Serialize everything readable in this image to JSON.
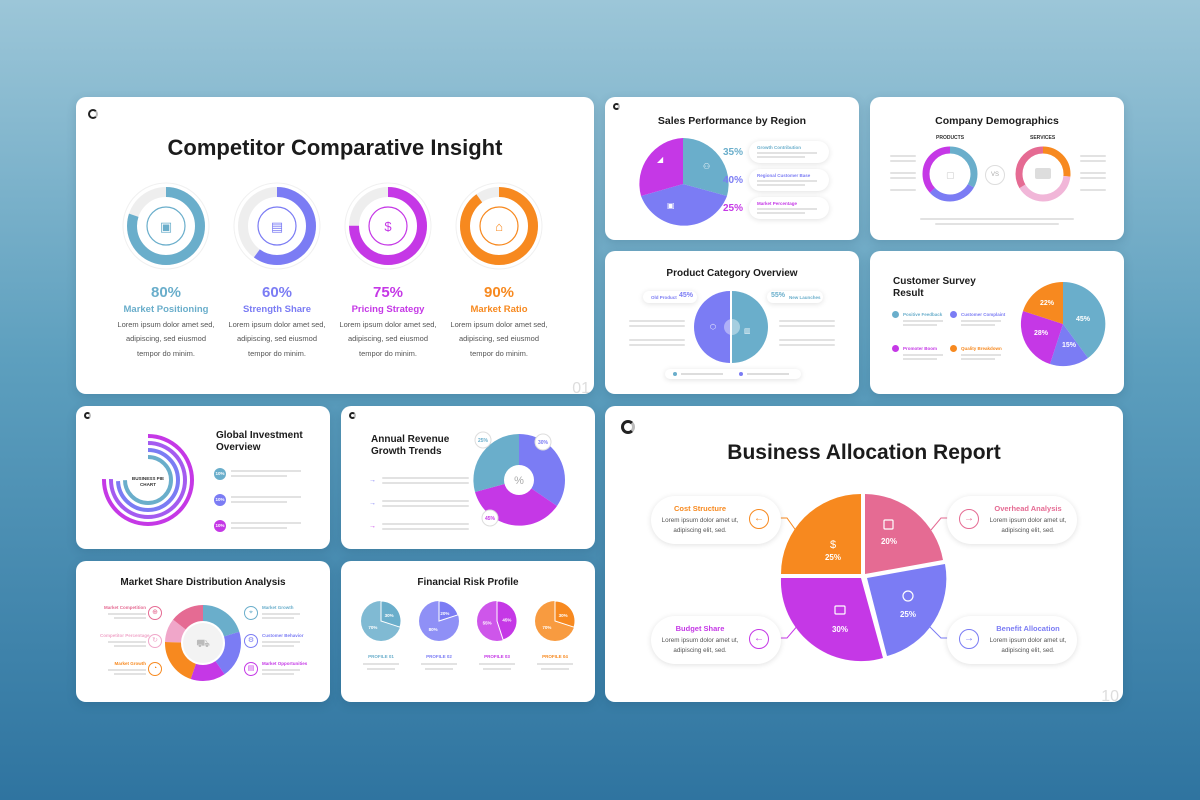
{
  "colors": {
    "teal": "#6aaecb",
    "indigo": "#7b7cf4",
    "purple": "#c538e6",
    "orange": "#f7891f",
    "pink": "#e56b93"
  },
  "competitor": {
    "title": "Competitor Comparative Insight",
    "page": "01",
    "items": [
      {
        "value": "80%",
        "label": "Market Positioning",
        "text1": "Lorem ipsum dolor amet sed,",
        "text2": "adipiscing, sed eiusmod",
        "text3": "tempor do minim.",
        "pct": 0.8,
        "color": "#6aaecb",
        "icon": "briefcase-icon"
      },
      {
        "value": "60%",
        "label": "Strength Share",
        "text1": "Lorem ipsum dolor amet sed,",
        "text2": "adipiscing, sed eiusmod",
        "text3": "tempor do minim.",
        "pct": 0.6,
        "color": "#7b7cf4",
        "icon": "chart-icon"
      },
      {
        "value": "75%",
        "label": "Pricing Strategy",
        "text1": "Lorem ipsum dolor amet sed,",
        "text2": "adipiscing, sed eiusmod",
        "text3": "tempor do minim.",
        "pct": 0.75,
        "color": "#c538e6",
        "icon": "dollar-icon"
      },
      {
        "value": "90%",
        "label": "Market Ratio",
        "text1": "Lorem ipsum dolor amet sed,",
        "text2": "adipiscing, sed eiusmod",
        "text3": "tempor do minim.",
        "pct": 0.9,
        "color": "#f7891f",
        "icon": "store-icon"
      }
    ]
  },
  "sales": {
    "title": "Sales Performance by Region",
    "rows": [
      {
        "value": "35%",
        "label": "Growth Contribution",
        "color": "#6aaecb"
      },
      {
        "value": "40%",
        "label": "Regional Customer Base",
        "color": "#7b7cf4"
      },
      {
        "value": "25%",
        "label": "Market Percentage",
        "color": "#c538e6"
      }
    ]
  },
  "demographics": {
    "title": "Company Demographics",
    "products": "PRODUCTS",
    "services": "SERVICES",
    "vs": "VS"
  },
  "product_category": {
    "title": "Product Category Overview",
    "left_label": "Old Product",
    "left_value": "45%",
    "right_value": "55%",
    "right_label": "New Launches"
  },
  "survey": {
    "title1": "Customer Survey",
    "title2": "Result",
    "items": [
      {
        "label": "Positive Feedback",
        "color": "#6aaecb"
      },
      {
        "label": "Customer Complaint",
        "color": "#7b7cf4"
      },
      {
        "label": "Promoter Boom",
        "color": "#c538e6"
      },
      {
        "label": "Quality Breakdown",
        "color": "#f7891f"
      }
    ],
    "slices": [
      "45%",
      "15%",
      "28%",
      "22%"
    ]
  },
  "investment": {
    "title1": "Global Investment",
    "title2": "Overview",
    "center1": "BUSINESS PIE",
    "center2": "CHART",
    "rows": [
      {
        "value": "10%",
        "color": "#6aaecb"
      },
      {
        "value": "10%",
        "color": "#7b7cf4"
      },
      {
        "value": "10%",
        "color": "#c538e6"
      }
    ]
  },
  "revenue": {
    "title1": "Annual Revenue",
    "title2": "Growth Trends",
    "badges": [
      "25%",
      "30%",
      "45%"
    ],
    "center": "%"
  },
  "business": {
    "title": "Business Allocation Report",
    "page": "10",
    "callouts": [
      {
        "title": "Cost Structure",
        "text1": "Lorem ipsum dolor amet ut,",
        "text2": "adipiscing elit, sed.",
        "color": "#f7891f"
      },
      {
        "title": "Overhead Analysis",
        "text1": "Lorem ipsum dolor amet ut,",
        "text2": "adipiscing elit, sed.",
        "color": "#e56b93"
      },
      {
        "title": "Budget Share",
        "text1": "Lorem ipsum dolor amet ut,",
        "text2": "adipiscing elit, sed.",
        "color": "#c538e6"
      },
      {
        "title": "Benefit Allocation",
        "text1": "Lorem ipsum dolor amet ut,",
        "text2": "adipiscing elit, sed.",
        "color": "#7b7cf4"
      }
    ],
    "slices": [
      {
        "value": "25%",
        "color": "#f7891f"
      },
      {
        "value": "20%",
        "color": "#e56b93"
      },
      {
        "value": "25%",
        "color": "#7b7cf4"
      },
      {
        "value": "30%",
        "color": "#c538e6"
      }
    ]
  },
  "market_share": {
    "title": "Market Share Distribution Analysis",
    "left_items": [
      "Market Competition",
      "Competitor Percentage",
      "Market Growth"
    ],
    "right_items": [
      "Market Growth",
      "Customer Behavior",
      "Market Opportunities"
    ]
  },
  "risk": {
    "title": "Financial Risk Profile",
    "profiles": [
      {
        "label": "PROFILE 01",
        "a": "30%",
        "b": "70%",
        "color": "#6aaecb"
      },
      {
        "label": "PROFILE 02",
        "a": "20%",
        "b": "80%",
        "color": "#7b7cf4"
      },
      {
        "label": "PROFILE 03",
        "a": "45%",
        "b": "55%",
        "color": "#c538e6"
      },
      {
        "label": "PROFILE 04",
        "a": "30%",
        "b": "70%",
        "color": "#f7891f"
      }
    ]
  }
}
